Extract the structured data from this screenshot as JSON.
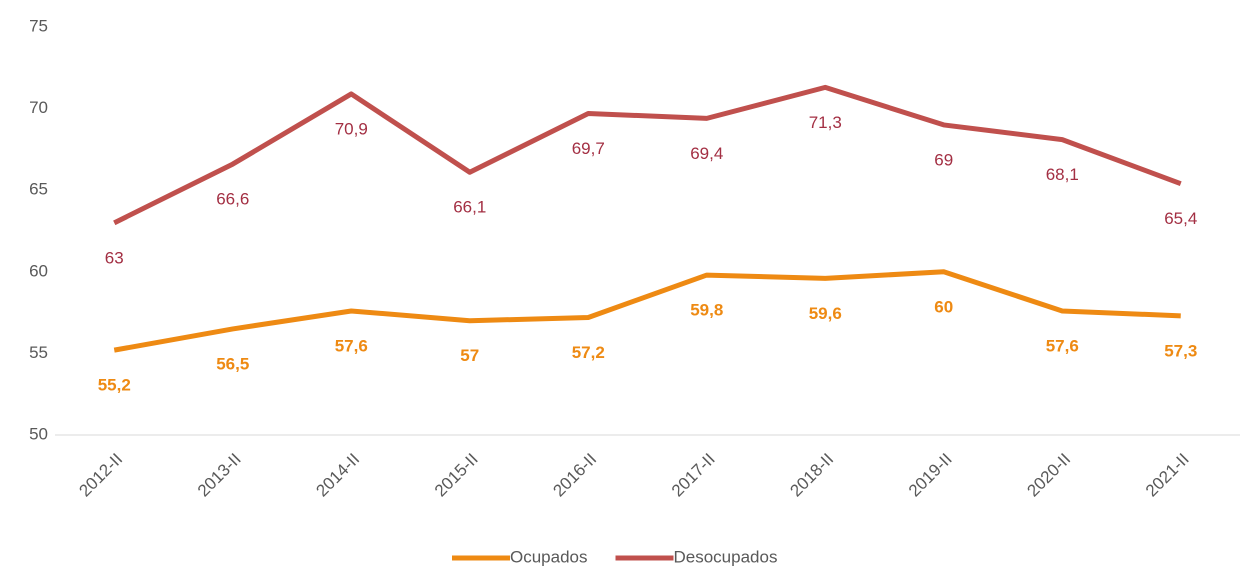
{
  "chart_data": {
    "type": "line",
    "categories": [
      "2012-II",
      "2013-II",
      "2014-II",
      "2015-II",
      "2016-II",
      "2017-II",
      "2018-II",
      "2019-II",
      "2020-II",
      "2021-II"
    ],
    "series": [
      {
        "name": "Ocupados",
        "color": "#ee8a13",
        "label_color": "#ee8a13",
        "values": [
          55.2,
          56.5,
          57.6,
          57,
          57.2,
          59.8,
          59.6,
          60,
          57.6,
          57.3
        ],
        "value_labels": [
          "55,2",
          "56,5",
          "57,6",
          "57",
          "57,2",
          "59,8",
          "59,6",
          "60",
          "57,6",
          "57,3"
        ]
      },
      {
        "name": "Desocupados",
        "color": "#c0504d",
        "label_color": "#a32f43",
        "values": [
          63,
          66.6,
          70.9,
          66.1,
          69.7,
          69.4,
          71.3,
          69,
          68.1,
          65.4
        ],
        "value_labels": [
          "63",
          "66,6",
          "70,9",
          "66,1",
          "69,7",
          "69,4",
          "71,3",
          "69",
          "68,1",
          "65,4"
        ]
      }
    ],
    "ylim": [
      50,
      75
    ],
    "yticks": [
      50,
      55,
      60,
      65,
      70,
      75
    ],
    "grid": false,
    "legend": "bottom"
  }
}
